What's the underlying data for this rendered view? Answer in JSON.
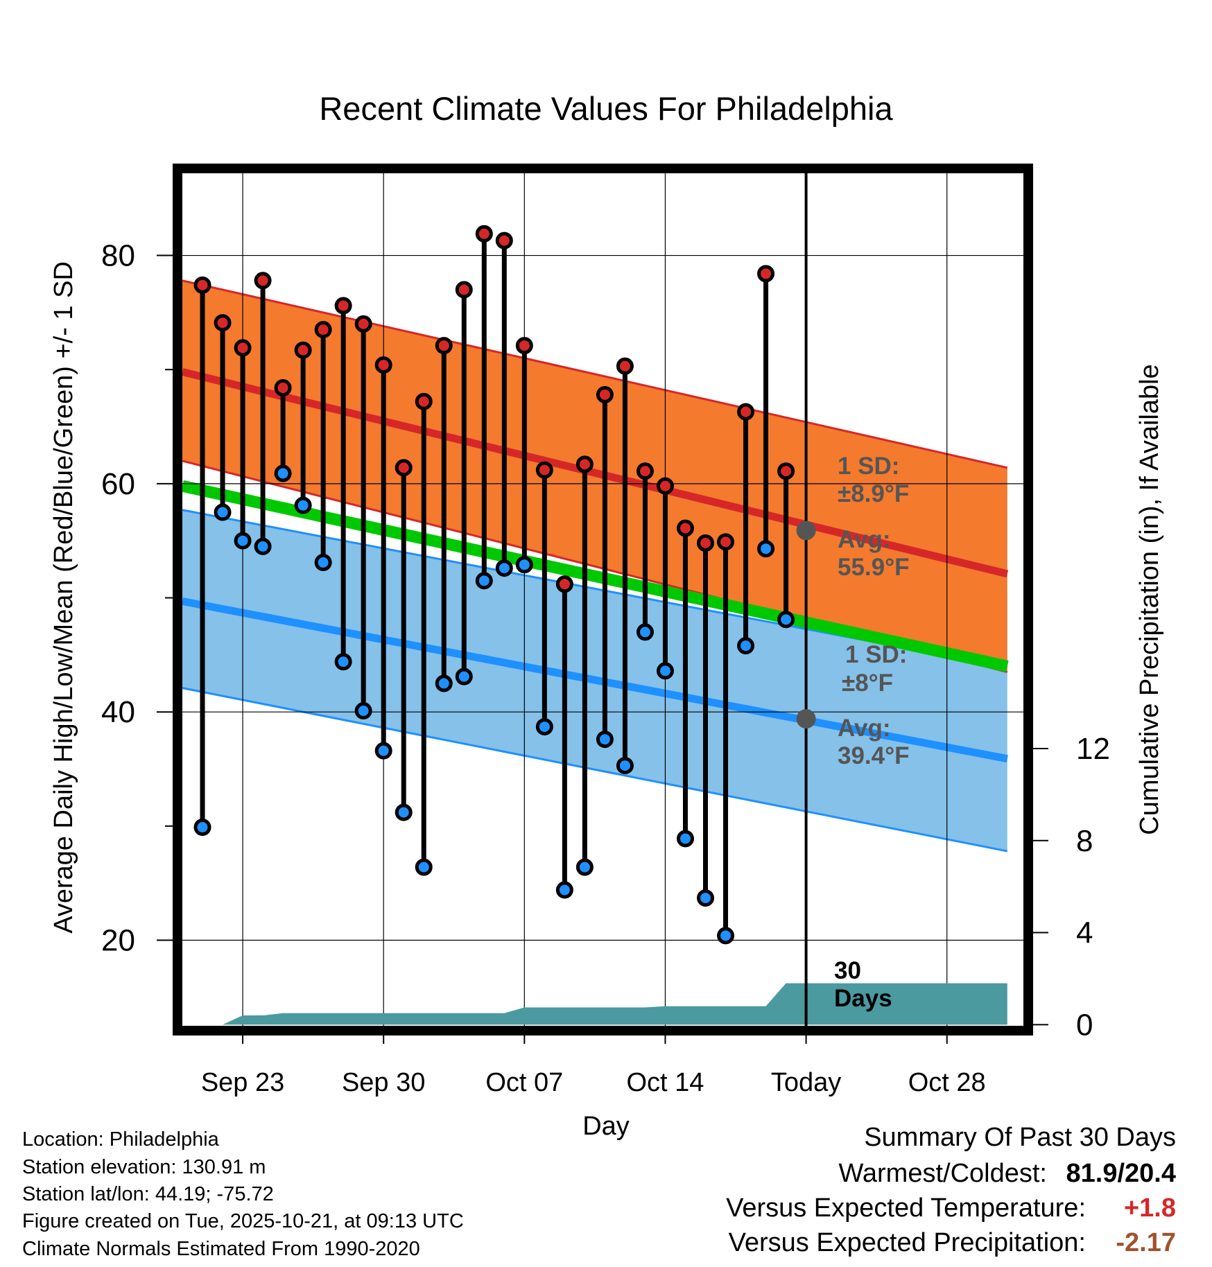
{
  "chart_data": {
    "type": "line",
    "title": "Recent Climate Values For Philadelphia",
    "xlabel": "Day",
    "ylabel": "Average Daily High/Low/Mean (Red/Blue/Green) +/- 1 SD",
    "y2label": "Cumulative Precipitation (in), If Available",
    "xlim": [
      0,
      41.8
    ],
    "ylim": [
      12.5,
      87.2
    ],
    "y2lim": [
      -0.05,
      37
    ],
    "x_ticks": [
      {
        "x": 3,
        "label": "Sep 23"
      },
      {
        "x": 10,
        "label": "Sep 30"
      },
      {
        "x": 17,
        "label": "Oct 07"
      },
      {
        "x": 24,
        "label": "Oct 14"
      },
      {
        "x": 31,
        "label": "Today"
      },
      {
        "x": 38,
        "label": "Oct 28"
      }
    ],
    "y_ticks": [
      20,
      40,
      60,
      80
    ],
    "y_minor_ticks": [
      30,
      50,
      70
    ],
    "y2_ticks": [
      0,
      4,
      8,
      12
    ],
    "today_x": 31,
    "normals": {
      "x": [
        0,
        41
      ],
      "high_avg": [
        69.8,
        52.1
      ],
      "high_upper": [
        77.8,
        61.4
      ],
      "high_lower": [
        62.0,
        43.5
      ],
      "low_avg": [
        49.7,
        35.9
      ],
      "low_upper": [
        57.7,
        43.9
      ],
      "low_lower": [
        42.1,
        27.8
      ],
      "mean_avg": [
        59.8,
        44.0
      ]
    },
    "series": [
      {
        "name": "Daily High",
        "color": "#d62728",
        "x": [
          1,
          2,
          3,
          4,
          5,
          6,
          7,
          8,
          9,
          10,
          11,
          12,
          13,
          14,
          15,
          16,
          17,
          18,
          19,
          20,
          21,
          22,
          23,
          24,
          25,
          26,
          27,
          28,
          29,
          30
        ],
        "values": [
          77.4,
          74.1,
          71.9,
          77.8,
          68.4,
          71.7,
          73.5,
          75.6,
          74.0,
          70.4,
          61.4,
          67.2,
          72.1,
          77.0,
          81.9,
          81.3,
          72.1,
          61.2,
          51.2,
          61.7,
          67.8,
          70.3,
          61.1,
          59.8,
          56.1,
          54.8,
          54.9,
          66.3,
          78.4,
          61.1
        ]
      },
      {
        "name": "Daily Low",
        "color": "#1e90ff",
        "x": [
          1,
          2,
          3,
          4,
          5,
          6,
          7,
          8,
          9,
          10,
          11,
          12,
          13,
          14,
          15,
          16,
          17,
          18,
          19,
          20,
          21,
          22,
          23,
          24,
          25,
          26,
          27,
          28,
          29,
          30
        ],
        "values": [
          29.9,
          57.5,
          55.0,
          54.5,
          60.9,
          58.1,
          53.1,
          44.4,
          40.1,
          36.6,
          31.2,
          26.4,
          42.5,
          43.1,
          51.5,
          52.6,
          52.9,
          38.7,
          24.4,
          26.4,
          37.6,
          35.3,
          47.0,
          43.6,
          28.9,
          23.7,
          20.4,
          45.8,
          54.3,
          48.1
        ]
      }
    ],
    "precip": {
      "x": [
        0,
        2,
        3,
        4,
        5,
        16,
        17,
        23,
        24,
        29,
        30,
        41
      ],
      "values": [
        0,
        0,
        0.4,
        0.4,
        0.5,
        0.5,
        0.75,
        0.75,
        0.8,
        0.8,
        1.8,
        1.8
      ]
    },
    "annotations": {
      "high_sd_label": "1 SD:",
      "high_sd_value": "±8.9°F",
      "high_avg_label": "Avg:",
      "high_avg_value": "55.9°F",
      "high_avg_point": 55.9,
      "low_sd_label": "1 SD:",
      "low_sd_value": "±8°F",
      "low_avg_label": "Avg:",
      "low_avg_value": "39.4°F",
      "low_avg_point": 39.4,
      "days_line1": "30",
      "days_line2": "Days"
    },
    "colors": {
      "high_band": "#f47a2e",
      "high_line": "#d62728",
      "low_band": "#85c1e9",
      "low_line": "#1e90ff",
      "mean_line": "#00c800",
      "precip": "#4a9aa0",
      "annotation": "#555555",
      "dot_high": "#d62728",
      "dot_low": "#1e90ff"
    }
  },
  "footer": {
    "location": "Location: Philadelphia",
    "elevation": "Station elevation: 130.91 m",
    "latlon": "Station lat/lon: 44.19; -75.72",
    "created": "Figure created on Tue, 2025-10-21, at 09:13 UTC",
    "normals": "Climate Normals Estimated From 1990-2020"
  },
  "summary": {
    "title": "Summary Of Past 30 Days",
    "warm_cold_label": "Warmest/Coldest:",
    "warm_cold_value": "81.9/20.4",
    "temp_label": "Versus Expected Temperature:",
    "temp_value": "+1.8",
    "temp_color": "#d62728",
    "precip_label": "Versus Expected Precipitation:",
    "precip_value": "-2.17",
    "precip_color": "#a0522d"
  }
}
